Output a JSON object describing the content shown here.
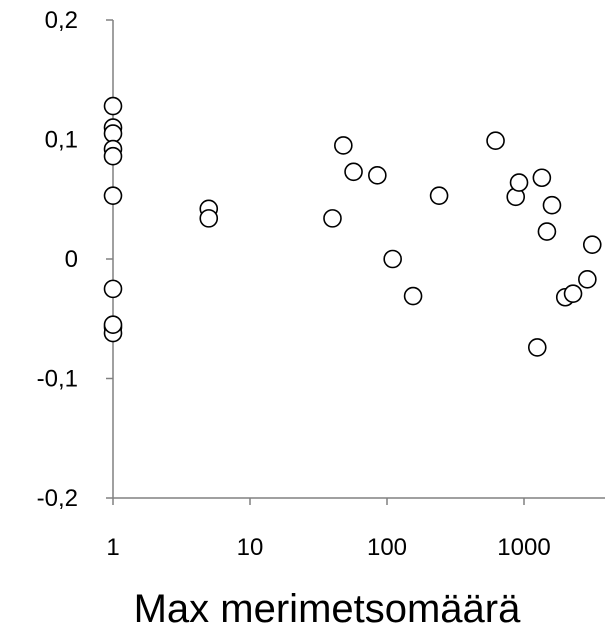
{
  "chart_data": {
    "type": "scatter",
    "title": "",
    "xlabel": "Max merimetsomäärä",
    "ylabel": "",
    "x_scale": "log",
    "xlim": [
      1,
      3200
    ],
    "ylim": [
      -0.2,
      0.2
    ],
    "x_ticks": [
      1,
      10,
      100,
      1000
    ],
    "x_tick_labels": [
      "1",
      "10",
      "100",
      "1000"
    ],
    "y_ticks": [
      0.2,
      0.1,
      0,
      -0.1,
      -0.2
    ],
    "y_tick_labels": [
      "0,2",
      "0,1",
      "0",
      "-0,1",
      "-0,2"
    ],
    "grid": false,
    "marker": "open-circle",
    "series": [
      {
        "x": [
          1,
          1,
          1,
          1,
          1,
          1,
          1,
          1,
          1,
          1,
          5,
          5,
          40,
          48,
          57,
          85,
          110,
          155,
          240,
          620,
          870,
          920,
          1250,
          1350,
          1470,
          1600,
          2000,
          2280,
          2900,
          3150
        ],
        "y": [
          0.128,
          0.11,
          0.105,
          0.092,
          0.086,
          0.053,
          -0.025,
          -0.057,
          -0.062,
          -0.055,
          0.042,
          0.034,
          0.034,
          0.095,
          0.073,
          0.07,
          0.0,
          -0.031,
          0.053,
          0.099,
          0.052,
          0.064,
          -0.074,
          0.068,
          0.023,
          0.045,
          -0.032,
          -0.029,
          -0.017,
          0.012
        ]
      }
    ]
  },
  "colors": {
    "axis": "#808080",
    "marker_edge": "#000000",
    "marker_fill": "#ffffff"
  }
}
